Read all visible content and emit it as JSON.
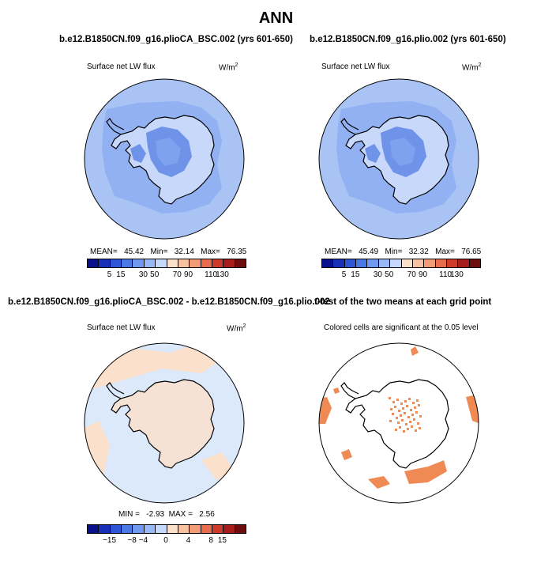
{
  "figure": {
    "title": "ANN",
    "panels": [
      {
        "case_title": "b.e12.B1850CN.f09_g16.plioCA_BSC.002 (yrs 601-650)",
        "variable": "Surface net LW flux",
        "units": "W/m",
        "units_sup": "2",
        "stats": {
          "mean_label": "MEAN=",
          "mean": "45.42",
          "min_label": "Min=",
          "min": "32.14",
          "max_label": "Max=",
          "max": "76.35"
        },
        "colorbar_labels": [
          "5",
          "15",
          "30",
          "50",
          "70",
          "90",
          "110",
          "130"
        ]
      },
      {
        "case_title": "b.e12.B1850CN.f09_g16.plio.002 (yrs 601-650)",
        "variable": "Surface net LW flux",
        "units": "W/m",
        "units_sup": "2",
        "stats": {
          "mean_label": "MEAN=",
          "mean": "45.49",
          "min_label": "Min=",
          "min": "32.32",
          "max_label": "Max=",
          "max": "76.65"
        },
        "colorbar_labels": [
          "5",
          "15",
          "30",
          "50",
          "70",
          "90",
          "110",
          "130"
        ]
      },
      {
        "case_title": "b.e12.B1850CN.f09_g16.plioCA_BSC.002 - b.e12.B1850CN.f09_g16.plio.002",
        "variable": "Surface net LW flux",
        "units": "W/m",
        "units_sup": "2",
        "stats": {
          "min_label": "MIN =",
          "min": "-2.93",
          "max_label": "MAX =",
          "max": "2.56"
        },
        "colorbar_labels": [
          "−15",
          "−8",
          "−4",
          "0",
          "4",
          "8",
          "15"
        ]
      },
      {
        "case_title": "t-test of the two means at each grid point",
        "variable": "Colored cells are significant at the 0.05 level"
      }
    ]
  },
  "colors": {
    "abs_scale": [
      "#08108e",
      "#1a2fb8",
      "#2f55d6",
      "#4a79e6",
      "#6f9af0",
      "#98b8f6",
      "#c6d8fb",
      "#fbe0cc",
      "#f8c2a2",
      "#f39a77",
      "#e76b4c",
      "#cf3b2a",
      "#a51c1a",
      "#6e0d0d"
    ],
    "diff_scale": [
      "#08108e",
      "#1a2fb8",
      "#2f55d6",
      "#4a79e6",
      "#6f9af0",
      "#98b8f6",
      "#c6d8fb",
      "#fbe0cc",
      "#f8c2a2",
      "#f39a77",
      "#e76b4c",
      "#cf3b2a",
      "#a51c1a",
      "#6e0d0d"
    ],
    "ocean_main": "#a9c3f5",
    "ice_shelf": "#7fa2ee",
    "interior_dark": "#6f93e8",
    "interior_light": "#c7d8fb",
    "diff_ocean": "#dce9fb",
    "diff_pos": "#fbe0cc",
    "signif": "#f08a55"
  },
  "chart_data": [
    {
      "type": "heatmap",
      "title": "Surface net LW flux",
      "projection": "south-polar-stereographic",
      "stats": {
        "mean": 45.42,
        "min": 32.14,
        "max": 76.35
      },
      "levels": [
        5,
        15,
        30,
        50,
        70,
        90,
        110,
        130
      ]
    },
    {
      "type": "heatmap",
      "title": "Surface net LW flux",
      "projection": "south-polar-stereographic",
      "stats": {
        "mean": 45.49,
        "min": 32.32,
        "max": 76.65
      },
      "levels": [
        5,
        15,
        30,
        50,
        70,
        90,
        110,
        130
      ]
    },
    {
      "type": "heatmap",
      "title": "Surface net LW flux",
      "projection": "south-polar-stereographic",
      "stats": {
        "min": -2.93,
        "max": 2.56
      },
      "levels": [
        -15,
        -8,
        -4,
        0,
        4,
        8,
        15
      ]
    },
    {
      "type": "heatmap",
      "title": "Colored cells are significant at the 0.05 level",
      "projection": "south-polar-stereographic"
    }
  ]
}
